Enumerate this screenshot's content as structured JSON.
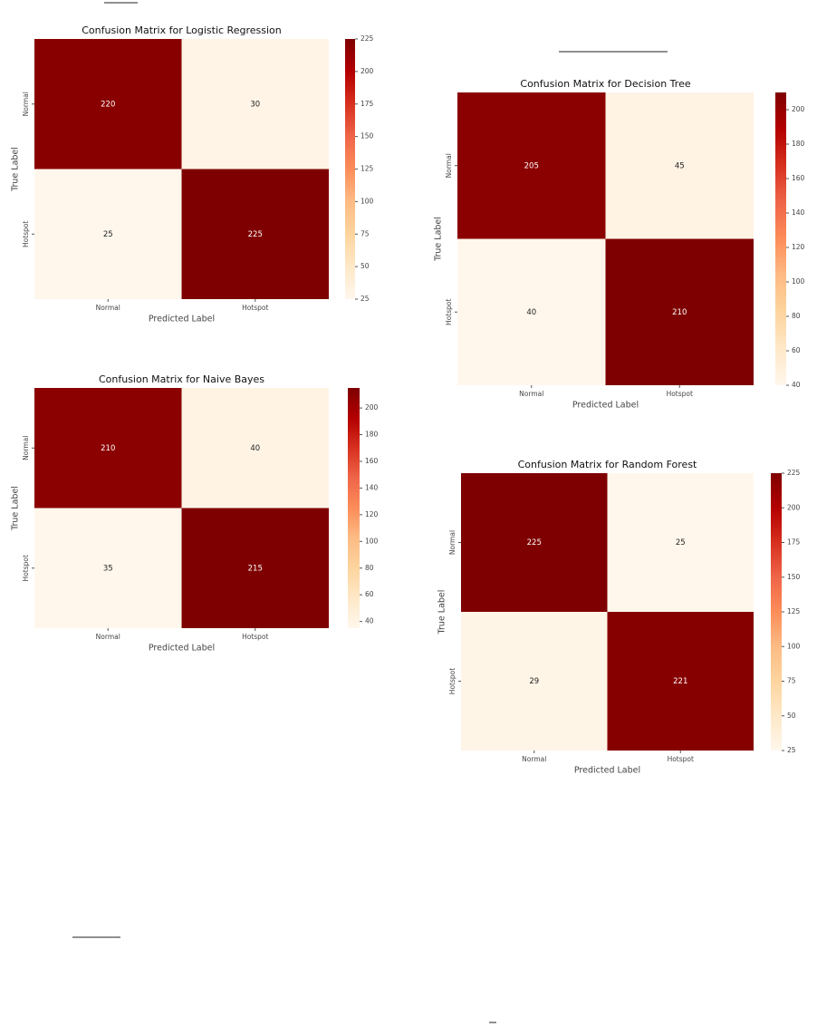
{
  "chart_data": [
    {
      "type": "heatmap",
      "title": "Confusion Matrix for Logistic Regression",
      "xlabel": "Predicted Label",
      "ylabel": "True Label",
      "x_categories": [
        "Normal",
        "Hotspot"
      ],
      "y_categories": [
        "Normal",
        "Hotspot"
      ],
      "values": [
        [
          220,
          30
        ],
        [
          25,
          225
        ]
      ],
      "clim": [
        25,
        225
      ],
      "cticks": [
        25,
        50,
        75,
        100,
        125,
        150,
        175,
        200,
        225
      ],
      "colors": [
        "#fff7ec",
        "#fee8c8",
        "#fdd49e",
        "#fdbb84",
        "#fc8d59",
        "#ef6548",
        "#d7301f",
        "#b30000",
        "#7f0000"
      ]
    },
    {
      "type": "heatmap",
      "title": "Confusion Matrix for Decision Tree",
      "xlabel": "Predicted Label",
      "ylabel": "True Label",
      "x_categories": [
        "Normal",
        "Hotspot"
      ],
      "y_categories": [
        "Normal",
        "Hotspot"
      ],
      "values": [
        [
          205,
          45
        ],
        [
          40,
          210
        ]
      ],
      "clim": [
        40,
        210
      ],
      "cticks": [
        40,
        60,
        80,
        100,
        120,
        140,
        160,
        180,
        200
      ],
      "colors": [
        "#fff7ec",
        "#fee8c8",
        "#fdd49e",
        "#fdbb84",
        "#fc8d59",
        "#ef6548",
        "#d7301f",
        "#b30000",
        "#7f0000"
      ]
    },
    {
      "type": "heatmap",
      "title": "Confusion Matrix for Naive Bayes",
      "xlabel": "Predicted Label",
      "ylabel": "True Label",
      "x_categories": [
        "Normal",
        "Hotspot"
      ],
      "y_categories": [
        "Normal",
        "Hotspot"
      ],
      "values": [
        [
          210,
          40
        ],
        [
          35,
          215
        ]
      ],
      "clim": [
        35,
        215
      ],
      "cticks": [
        40,
        60,
        80,
        100,
        120,
        140,
        160,
        180,
        200
      ],
      "colors": [
        "#fff7ec",
        "#fee8c8",
        "#fdd49e",
        "#fdbb84",
        "#fc8d59",
        "#ef6548",
        "#d7301f",
        "#b30000",
        "#7f0000"
      ]
    },
    {
      "type": "heatmap",
      "title": "Confusion Matrix for Random Forest",
      "xlabel": "Predicted Label",
      "ylabel": "True Label",
      "x_categories": [
        "Normal",
        "Hotspot"
      ],
      "y_categories": [
        "Normal",
        "Hotspot"
      ],
      "values": [
        [
          225,
          25
        ],
        [
          29,
          221
        ]
      ],
      "clim": [
        25,
        225
      ],
      "cticks": [
        25,
        50,
        75,
        100,
        125,
        150,
        175,
        200,
        225
      ],
      "colors": [
        "#fff7ec",
        "#fee8c8",
        "#fdd49e",
        "#fdbb84",
        "#fc8d59",
        "#ef6548",
        "#d7301f",
        "#b30000",
        "#7f0000"
      ]
    }
  ]
}
